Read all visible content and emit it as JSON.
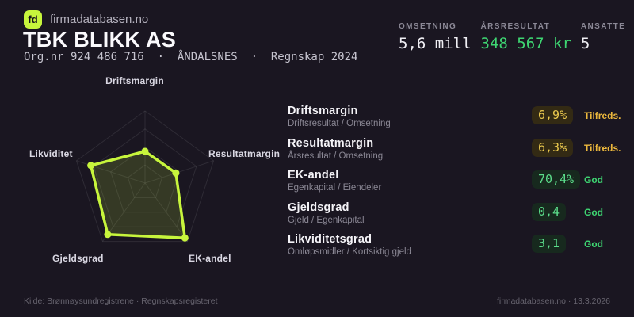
{
  "brand": {
    "logo_text": "fd",
    "name": "firmadatabasen.no"
  },
  "header": {
    "title": "TBK BLIKK AS",
    "subtitle": "Org.nr 924 486 716  ·  ÅNDALSNES  ·  Regnskap 2024"
  },
  "stats": [
    {
      "label": "OMSETNING",
      "value": "5,6 mill",
      "tone": "white"
    },
    {
      "label": "ÅRSRESULTAT",
      "value": "348 567 kr",
      "tone": "green"
    },
    {
      "label": "ANSATTE",
      "value": "5",
      "tone": "white"
    }
  ],
  "chart_data": {
    "type": "radar",
    "title": "",
    "categories": [
      "Driftsmargin",
      "Resultatmargin",
      "EK-andel",
      "Gjeldsgrad",
      "Likviditet"
    ],
    "values": [
      0.44,
      0.45,
      0.94,
      0.88,
      0.79
    ],
    "value_range": [
      0,
      1
    ],
    "rings": 4,
    "legend": false,
    "line_color": "#c7f53c",
    "fill_color": "rgba(199,245,60,0.16)",
    "dot_color": "#c7f53c",
    "grid_color": "rgba(255,255,255,0.09)"
  },
  "metrics": [
    {
      "name": "Driftsmargin",
      "formula": "Driftsresultat / Omsetning",
      "value": "6,9%",
      "status": "Tilfreds.",
      "tone": "warn"
    },
    {
      "name": "Resultatmargin",
      "formula": "Årsresultat / Omsetning",
      "value": "6,3%",
      "status": "Tilfreds.",
      "tone": "warn"
    },
    {
      "name": "EK-andel",
      "formula": "Egenkapital / Eiendeler",
      "value": "70,4%",
      "status": "God",
      "tone": "good"
    },
    {
      "name": "Gjeldsgrad",
      "formula": "Gjeld / Egenkapital",
      "value": "0,4",
      "status": "God",
      "tone": "good"
    },
    {
      "name": "Likviditetsgrad",
      "formula": "Omløpsmidler / Kortsiktig gjeld",
      "value": "3,1",
      "status": "God",
      "tone": "good"
    }
  ],
  "footer": {
    "source": "Kilde: Brønnøysundregistrene · Regnskapsregisteret",
    "attribution": "firmadatabasen.no · 13.3.2026"
  },
  "colors": {
    "background": "#1a1621",
    "accent": "#c7f53c",
    "green": "#3ed672",
    "yellow": "#eab93d",
    "text_primary": "#f4f3f7",
    "text_muted": "#8b8896"
  }
}
